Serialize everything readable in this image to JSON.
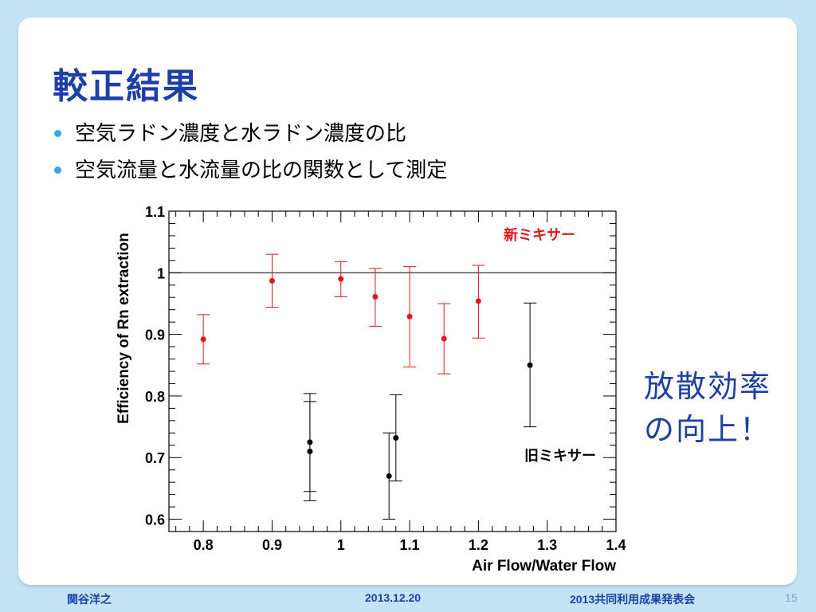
{
  "slide": {
    "title": "較正結果",
    "bullets": [
      "空気ラドン濃度と水ラドン濃度の比",
      "空気流量と水流量の比の関数として測定"
    ],
    "callout_line1": "放散効率",
    "callout_line2": "の向上！"
  },
  "footer": {
    "author": "関谷洋之",
    "date": "2013.12.20",
    "event": "2013共同利用成果発表会",
    "page": "15"
  },
  "colors": {
    "accent": "#1c3fa8",
    "bullet": "#36a6e2",
    "new_series": "#e8141a",
    "old_series": "#000000"
  },
  "chart_data": {
    "type": "scatter",
    "xlabel": "Air Flow/Water Flow",
    "ylabel": "Efficiency of Rn extraction",
    "xlim": [
      0.75,
      1.4
    ],
    "ylim": [
      0.58,
      1.1
    ],
    "x_ticks": [
      "0.8",
      "0.9",
      "1",
      "1.1",
      "1.2",
      "1.3",
      "1.4"
    ],
    "y_ticks": [
      "0.6",
      "0.7",
      "0.8",
      "0.9",
      "1",
      "1.1"
    ],
    "reference_line": 1.0,
    "grid": false,
    "series": [
      {
        "name": "新ミキサー",
        "color": "#e8141a",
        "points": [
          {
            "x": 0.8,
            "y": 0.892,
            "lo": 0.852,
            "hi": 0.932
          },
          {
            "x": 0.9,
            "y": 0.987,
            "lo": 0.944,
            "hi": 1.03
          },
          {
            "x": 1.0,
            "y": 0.99,
            "lo": 0.961,
            "hi": 1.018
          },
          {
            "x": 1.05,
            "y": 0.961,
            "lo": 0.913,
            "hi": 1.007
          },
          {
            "x": 1.1,
            "y": 0.929,
            "lo": 0.847,
            "hi": 1.01
          },
          {
            "x": 1.15,
            "y": 0.893,
            "lo": 0.836,
            "hi": 0.95
          },
          {
            "x": 1.2,
            "y": 0.954,
            "lo": 0.894,
            "hi": 1.012
          }
        ]
      },
      {
        "name": "旧ミキサー",
        "color": "#000000",
        "points": [
          {
            "x": 0.955,
            "y": 0.725,
            "lo": 0.645,
            "hi": 0.804
          },
          {
            "x": 0.955,
            "y": 0.71,
            "lo": 0.63,
            "hi": 0.791
          },
          {
            "x": 1.07,
            "y": 0.67,
            "lo": 0.6,
            "hi": 0.74
          },
          {
            "x": 1.08,
            "y": 0.732,
            "lo": 0.662,
            "hi": 0.802
          },
          {
            "x": 1.275,
            "y": 0.85,
            "lo": 0.75,
            "hi": 0.951
          }
        ]
      }
    ]
  }
}
